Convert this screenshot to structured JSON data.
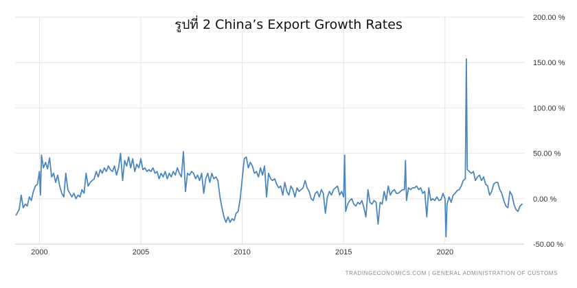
{
  "chart_data": {
    "type": "line",
    "title": "รูปที่ 2 China’s Export Growth Rates",
    "source": "TRADINGECONOMICS.COM | GENERAL ADMINISTRATION OF CUSTOMS",
    "xlabel": "",
    "ylabel": "",
    "xlim": [
      1998.8,
      2023.9
    ],
    "ylim": [
      -50,
      200
    ],
    "x_ticks": [
      2000,
      2005,
      2010,
      2015,
      2020
    ],
    "x_tick_labels": [
      "2000",
      "2005",
      "2010",
      "2015",
      "2020"
    ],
    "y_ticks": [
      -50,
      0,
      50,
      100,
      150,
      200
    ],
    "y_tick_labels": [
      "-50.00 %",
      "0.00 %",
      "50.00 %",
      "100.00 %",
      "150.00 %",
      "200.00 %"
    ],
    "grid": true,
    "legend": "none",
    "line_color": "#4a86c0",
    "series": [
      {
        "points": [
          [
            1998.85,
            -18
          ],
          [
            1999.0,
            -12
          ],
          [
            1999.1,
            4
          ],
          [
            1999.2,
            -10
          ],
          [
            1999.3,
            -6
          ],
          [
            1999.4,
            -8
          ],
          [
            1999.5,
            2
          ],
          [
            1999.6,
            -2
          ],
          [
            1999.7,
            8
          ],
          [
            1999.8,
            14
          ],
          [
            1999.9,
            16
          ],
          [
            2000.0,
            30
          ],
          [
            2000.05,
            4
          ],
          [
            2000.1,
            48
          ],
          [
            2000.2,
            34
          ],
          [
            2000.3,
            40
          ],
          [
            2000.4,
            33
          ],
          [
            2000.5,
            45
          ],
          [
            2000.6,
            24
          ],
          [
            2000.7,
            28
          ],
          [
            2000.8,
            18
          ],
          [
            2000.9,
            26
          ],
          [
            2001.0,
            14
          ],
          [
            2001.1,
            6
          ],
          [
            2001.2,
            2
          ],
          [
            2001.3,
            28
          ],
          [
            2001.4,
            10
          ],
          [
            2001.5,
            6
          ],
          [
            2001.6,
            2
          ],
          [
            2001.7,
            6
          ],
          [
            2001.8,
            0
          ],
          [
            2001.9,
            4
          ],
          [
            2002.0,
            2
          ],
          [
            2002.1,
            10
          ],
          [
            2002.2,
            6
          ],
          [
            2002.3,
            28
          ],
          [
            2002.4,
            14
          ],
          [
            2002.5,
            18
          ],
          [
            2002.6,
            20
          ],
          [
            2002.7,
            22
          ],
          [
            2002.8,
            30
          ],
          [
            2002.9,
            24
          ],
          [
            2003.0,
            32
          ],
          [
            2003.1,
            28
          ],
          [
            2003.2,
            34
          ],
          [
            2003.3,
            30
          ],
          [
            2003.4,
            36
          ],
          [
            2003.5,
            32
          ],
          [
            2003.6,
            30
          ],
          [
            2003.7,
            36
          ],
          [
            2003.8,
            26
          ],
          [
            2003.9,
            34
          ],
          [
            2004.0,
            50
          ],
          [
            2004.1,
            20
          ],
          [
            2004.2,
            42
          ],
          [
            2004.3,
            36
          ],
          [
            2004.4,
            46
          ],
          [
            2004.5,
            34
          ],
          [
            2004.6,
            44
          ],
          [
            2004.7,
            30
          ],
          [
            2004.8,
            38
          ],
          [
            2004.9,
            34
          ],
          [
            2005.0,
            44
          ],
          [
            2005.1,
            32
          ],
          [
            2005.2,
            34
          ],
          [
            2005.3,
            30
          ],
          [
            2005.4,
            32
          ],
          [
            2005.5,
            30
          ],
          [
            2005.6,
            34
          ],
          [
            2005.7,
            28
          ],
          [
            2005.8,
            30
          ],
          [
            2005.9,
            22
          ],
          [
            2006.0,
            28
          ],
          [
            2006.1,
            24
          ],
          [
            2006.2,
            30
          ],
          [
            2006.3,
            22
          ],
          [
            2006.4,
            28
          ],
          [
            2006.5,
            24
          ],
          [
            2006.6,
            30
          ],
          [
            2006.7,
            26
          ],
          [
            2006.8,
            34
          ],
          [
            2006.9,
            28
          ],
          [
            2007.0,
            24
          ],
          [
            2007.1,
            52
          ],
          [
            2007.2,
            8
          ],
          [
            2007.3,
            28
          ],
          [
            2007.4,
            26
          ],
          [
            2007.5,
            30
          ],
          [
            2007.6,
            28
          ],
          [
            2007.7,
            22
          ],
          [
            2007.8,
            26
          ],
          [
            2007.9,
            20
          ],
          [
            2008.0,
            28
          ],
          [
            2008.1,
            6
          ],
          [
            2008.2,
            22
          ],
          [
            2008.3,
            28
          ],
          [
            2008.4,
            18
          ],
          [
            2008.5,
            28
          ],
          [
            2008.6,
            22
          ],
          [
            2008.7,
            24
          ],
          [
            2008.8,
            20
          ],
          [
            2008.9,
            2
          ],
          [
            2009.0,
            -10
          ],
          [
            2009.1,
            -20
          ],
          [
            2009.2,
            -26
          ],
          [
            2009.3,
            -20
          ],
          [
            2009.4,
            -26
          ],
          [
            2009.5,
            -22
          ],
          [
            2009.6,
            -24
          ],
          [
            2009.7,
            -16
          ],
          [
            2009.8,
            -14
          ],
          [
            2009.9,
            0
          ],
          [
            2010.0,
            22
          ],
          [
            2010.1,
            44
          ],
          [
            2010.2,
            46
          ],
          [
            2010.3,
            34
          ],
          [
            2010.4,
            40
          ],
          [
            2010.5,
            36
          ],
          [
            2010.6,
            28
          ],
          [
            2010.7,
            30
          ],
          [
            2010.8,
            24
          ],
          [
            2010.9,
            34
          ],
          [
            2011.0,
            26
          ],
          [
            2011.1,
            36
          ],
          [
            2011.2,
            2
          ],
          [
            2011.3,
            28
          ],
          [
            2011.4,
            22
          ],
          [
            2011.5,
            20
          ],
          [
            2011.6,
            22
          ],
          [
            2011.7,
            16
          ],
          [
            2011.8,
            12
          ],
          [
            2011.9,
            14
          ],
          [
            2012.0,
            4
          ],
          [
            2012.1,
            18
          ],
          [
            2012.2,
            8
          ],
          [
            2012.3,
            4
          ],
          [
            2012.4,
            14
          ],
          [
            2012.5,
            10
          ],
          [
            2012.6,
            2
          ],
          [
            2012.7,
            12
          ],
          [
            2012.8,
            8
          ],
          [
            2012.9,
            10
          ],
          [
            2013.0,
            12
          ],
          [
            2013.1,
            20
          ],
          [
            2013.2,
            12
          ],
          [
            2013.3,
            8
          ],
          [
            2013.4,
            0
          ],
          [
            2013.5,
            -2
          ],
          [
            2013.6,
            6
          ],
          [
            2013.7,
            8
          ],
          [
            2013.8,
            2
          ],
          [
            2013.9,
            10
          ],
          [
            2014.0,
            6
          ],
          [
            2014.1,
            -16
          ],
          [
            2014.2,
            2
          ],
          [
            2014.3,
            8
          ],
          [
            2014.4,
            4
          ],
          [
            2014.5,
            10
          ],
          [
            2014.6,
            12
          ],
          [
            2014.7,
            14
          ],
          [
            2014.8,
            4
          ],
          [
            2014.9,
            8
          ],
          [
            2015.0,
            2
          ],
          [
            2015.05,
            48
          ],
          [
            2015.1,
            -14
          ],
          [
            2015.2,
            -6
          ],
          [
            2015.3,
            -2
          ],
          [
            2015.4,
            0
          ],
          [
            2015.5,
            -6
          ],
          [
            2015.6,
            -8
          ],
          [
            2015.7,
            -4
          ],
          [
            2015.8,
            -6
          ],
          [
            2015.9,
            -2
          ],
          [
            2016.0,
            -10
          ],
          [
            2016.1,
            -20
          ],
          [
            2016.2,
            10
          ],
          [
            2016.3,
            -4
          ],
          [
            2016.4,
            -6
          ],
          [
            2016.5,
            -2
          ],
          [
            2016.6,
            -4
          ],
          [
            2016.7,
            -28
          ],
          [
            2016.8,
            -4
          ],
          [
            2016.9,
            -6
          ],
          [
            2017.0,
            8
          ],
          [
            2017.1,
            -2
          ],
          [
            2017.2,
            14
          ],
          [
            2017.3,
            4
          ],
          [
            2017.4,
            8
          ],
          [
            2017.5,
            10
          ],
          [
            2017.6,
            6
          ],
          [
            2017.7,
            6
          ],
          [
            2017.8,
            8
          ],
          [
            2017.9,
            10
          ],
          [
            2018.0,
            10
          ],
          [
            2018.05,
            42
          ],
          [
            2018.1,
            -2
          ],
          [
            2018.2,
            12
          ],
          [
            2018.3,
            10
          ],
          [
            2018.4,
            12
          ],
          [
            2018.5,
            12
          ],
          [
            2018.6,
            14
          ],
          [
            2018.7,
            10
          ],
          [
            2018.8,
            12
          ],
          [
            2018.9,
            6
          ],
          [
            2019.0,
            8
          ],
          [
            2019.1,
            -20
          ],
          [
            2019.2,
            12
          ],
          [
            2019.3,
            -2
          ],
          [
            2019.4,
            0
          ],
          [
            2019.5,
            -2
          ],
          [
            2019.6,
            2
          ],
          [
            2019.7,
            -2
          ],
          [
            2019.8,
            -1
          ],
          [
            2019.9,
            6
          ],
          [
            2020.0,
            0
          ],
          [
            2020.05,
            -42
          ],
          [
            2020.1,
            -6
          ],
          [
            2020.2,
            2
          ],
          [
            2020.3,
            -4
          ],
          [
            2020.4,
            4
          ],
          [
            2020.5,
            6
          ],
          [
            2020.6,
            9
          ],
          [
            2020.7,
            10
          ],
          [
            2020.8,
            14
          ],
          [
            2020.9,
            20
          ],
          [
            2021.0,
            22
          ],
          [
            2021.05,
            154
          ],
          [
            2021.1,
            32
          ],
          [
            2021.2,
            30
          ],
          [
            2021.3,
            28
          ],
          [
            2021.4,
            30
          ],
          [
            2021.5,
            20
          ],
          [
            2021.6,
            24
          ],
          [
            2021.7,
            26
          ],
          [
            2021.8,
            20
          ],
          [
            2021.9,
            24
          ],
          [
            2022.0,
            16
          ],
          [
            2022.1,
            14
          ],
          [
            2022.2,
            4
          ],
          [
            2022.3,
            8
          ],
          [
            2022.4,
            16
          ],
          [
            2022.5,
            18
          ],
          [
            2022.6,
            18
          ],
          [
            2022.7,
            10
          ],
          [
            2022.8,
            6
          ],
          [
            2022.9,
            -2
          ],
          [
            2023.0,
            -8
          ],
          [
            2023.1,
            -10
          ],
          [
            2023.2,
            8
          ],
          [
            2023.3,
            4
          ],
          [
            2023.4,
            -6
          ],
          [
            2023.5,
            -12
          ],
          [
            2023.6,
            -14
          ],
          [
            2023.7,
            -8
          ],
          [
            2023.8,
            -6
          ]
        ]
      }
    ]
  }
}
